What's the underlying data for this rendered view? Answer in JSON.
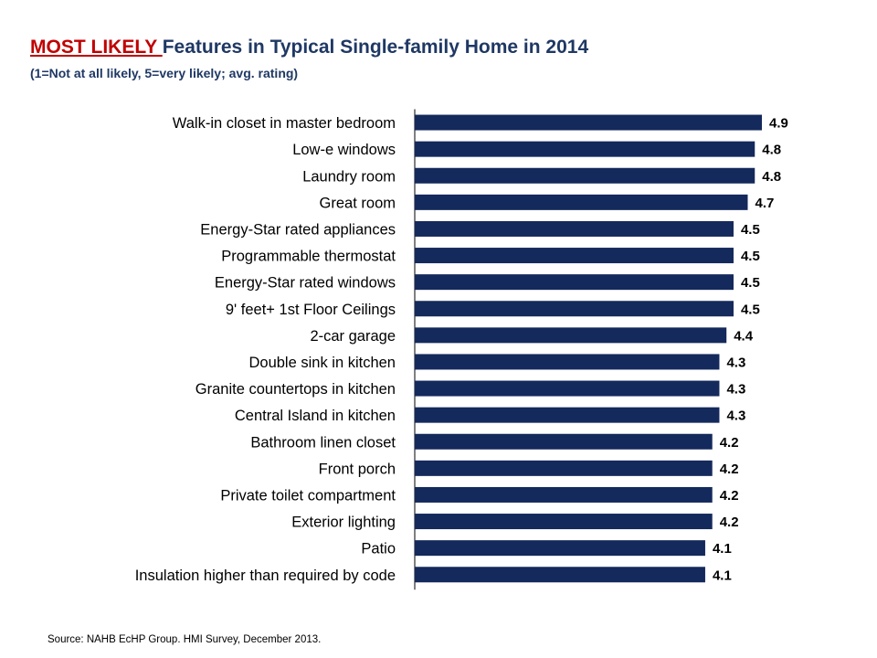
{
  "title": {
    "highlight": "MOST LIKELY ",
    "rest": "Features in Typical Single-family Home in 2014"
  },
  "subtitle": "(1=Not at all likely, 5=very likely; avg. rating)",
  "source": "Source: NAHB EcHP Group. HMI Survey, December 2013.",
  "colors": {
    "bar": "#14295c",
    "title": "#1f3864",
    "highlight": "#c00000"
  },
  "chart_data": {
    "type": "bar",
    "orientation": "horizontal",
    "categories": [
      "Walk-in closet in master bedroom",
      "Low-e windows",
      "Laundry room",
      "Great room",
      "Energy-Star rated appliances",
      "Programmable thermostat",
      "Energy-Star rated windows",
      "9' feet+ 1st Floor Ceilings",
      "2-car garage",
      "Double sink in kitchen",
      "Granite countertops in kitchen",
      "Central Island in kitchen",
      "Bathroom linen closet",
      "Front porch",
      "Private toilet compartment",
      "Exterior lighting",
      "Patio",
      "Insulation higher than required by code"
    ],
    "values": [
      4.9,
      4.8,
      4.8,
      4.7,
      4.5,
      4.5,
      4.5,
      4.5,
      4.4,
      4.3,
      4.3,
      4.3,
      4.2,
      4.2,
      4.2,
      4.2,
      4.1,
      4.1
    ],
    "data_labels": [
      "4.9",
      "4.8",
      "4.8",
      "4.7",
      "4.5",
      "4.5",
      "4.5",
      "4.5",
      "4.4",
      "4.3",
      "4.3",
      "4.3",
      "4.2",
      "4.2",
      "4.2",
      "4.2",
      "4.1",
      "4.1"
    ],
    "grid": false,
    "legend": "none"
  }
}
